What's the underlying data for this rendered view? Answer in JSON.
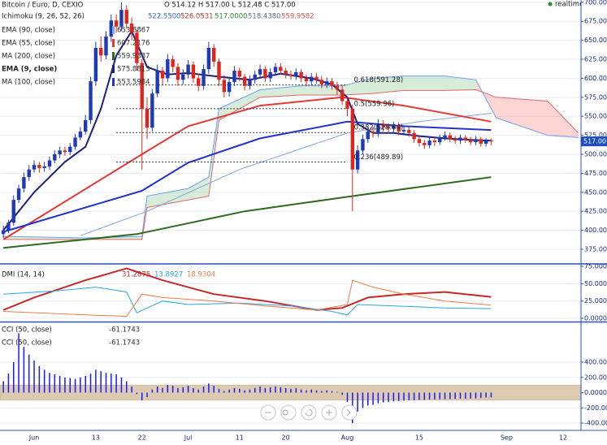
{
  "chart_data": [
    {
      "type": "candlestick",
      "title": "Bitcoin / Euro, D, CEXIO",
      "ohlc_label": "O 514.12 H 517.00 L 512.48 C 517.00",
      "realtime_label": "realtime",
      "last_price": {
        "value": 517,
        "label": "517.00"
      },
      "xlim": [
        -6.65,
        106.5
      ],
      "xticks": [
        {
          "value": 0,
          "label": "Jun"
        },
        {
          "value": 12,
          "label": "13"
        },
        {
          "value": 21,
          "label": "22"
        },
        {
          "value": 30,
          "label": "Jul"
        },
        {
          "value": 40,
          "label": "11"
        },
        {
          "value": 49,
          "label": "20"
        },
        {
          "value": 61,
          "label": "Aug"
        },
        {
          "value": 75,
          "label": "15"
        },
        {
          "value": 92,
          "label": "Sep"
        },
        {
          "value": 103,
          "label": "12"
        }
      ],
      "ylim": [
        359,
        703
      ],
      "yticks": [
        {
          "value": 375,
          "label": "375.00"
        },
        {
          "value": 400,
          "label": "400.00"
        },
        {
          "value": 425,
          "label": "425.00"
        },
        {
          "value": 450,
          "label": "450.00"
        },
        {
          "value": 475,
          "label": "475.00"
        },
        {
          "value": 500,
          "label": "500.00"
        },
        {
          "value": 525,
          "label": "525.00"
        },
        {
          "value": 550,
          "label": "550.00"
        },
        {
          "value": 575,
          "label": "575.00"
        },
        {
          "value": 600,
          "label": "600.00"
        },
        {
          "value": 625,
          "label": "625.00"
        },
        {
          "value": 650,
          "label": "650.00"
        },
        {
          "value": 675,
          "label": "675.00"
        },
        {
          "value": 700,
          "label": "700.00"
        }
      ],
      "grid": true,
      "up_color": "#1e3ab8",
      "down_color": "#e0261c",
      "x": [
        -6,
        -5,
        -4,
        -3,
        -2,
        -1,
        0,
        1,
        2,
        3,
        4,
        5,
        6,
        7,
        8,
        9,
        10,
        11,
        12,
        13,
        14,
        15,
        16,
        17,
        18,
        19,
        20,
        21,
        22,
        23,
        24,
        25,
        26,
        27,
        28,
        29,
        30,
        31,
        32,
        33,
        34,
        35,
        36,
        37,
        38,
        39,
        40,
        41,
        42,
        43,
        44,
        45,
        46,
        47,
        48,
        49,
        50,
        51,
        52,
        53,
        54,
        55,
        56,
        57,
        58,
        59,
        60,
        61,
        62,
        63,
        64,
        65,
        66,
        67,
        68,
        69,
        70,
        71,
        72,
        73,
        74,
        75,
        76,
        77,
        78,
        79,
        80,
        81,
        82,
        83,
        84,
        85,
        86,
        87,
        88,
        89
      ],
      "open": [
        395,
        400,
        410,
        440,
        455,
        470,
        480,
        486,
        482,
        484,
        492,
        500,
        505,
        503,
        510,
        522,
        530,
        545,
        596,
        640,
        630,
        655,
        676,
        668,
        690,
        672,
        660,
        620,
        560,
        535,
        580,
        610,
        600,
        625,
        615,
        598,
        605,
        618,
        600,
        590,
        612,
        640,
        622,
        598,
        582,
        595,
        610,
        602,
        590,
        598,
        605,
        612,
        600,
        608,
        615,
        610,
        605,
        603,
        608,
        600,
        596,
        602,
        598,
        592,
        596,
        590,
        585,
        570,
        560,
        480,
        505,
        520,
        530,
        528,
        540,
        536,
        534,
        538,
        530,
        532,
        528,
        520,
        515,
        512,
        518,
        516,
        522,
        525,
        520,
        518,
        522,
        519,
        516,
        520,
        514,
        518
      ],
      "high": [
        406,
        414,
        446,
        460,
        476,
        486,
        492,
        490,
        490,
        497,
        505,
        510,
        510,
        515,
        527,
        536,
        552,
        602,
        648,
        655,
        662,
        684,
        684,
        700,
        696,
        680,
        664,
        625,
        575,
        586,
        618,
        615,
        632,
        630,
        620,
        612,
        624,
        622,
        606,
        618,
        648,
        645,
        626,
        604,
        600,
        616,
        614,
        606,
        604,
        610,
        618,
        616,
        613,
        620,
        620,
        614,
        610,
        613,
        612,
        605,
        607,
        607,
        603,
        601,
        600,
        595,
        590,
        575,
        565,
        512,
        526,
        536,
        536,
        546,
        545,
        541,
        543,
        542,
        537,
        536,
        532,
        524,
        519,
        522,
        522,
        526,
        530,
        529,
        524,
        526,
        525,
        523,
        524,
        523,
        521,
        521
      ],
      "low": [
        390,
        396,
        406,
        436,
        450,
        465,
        476,
        476,
        477,
        480,
        488,
        495,
        498,
        499,
        506,
        518,
        526,
        540,
        590,
        622,
        625,
        648,
        660,
        662,
        665,
        650,
        610,
        480,
        520,
        530,
        575,
        592,
        595,
        608,
        590,
        592,
        600,
        594,
        583,
        585,
        606,
        615,
        590,
        575,
        576,
        590,
        596,
        584,
        585,
        593,
        600,
        595,
        595,
        603,
        605,
        600,
        598,
        598,
        595,
        590,
        591,
        593,
        587,
        587,
        585,
        578,
        565,
        550,
        425,
        475,
        500,
        515,
        522,
        523,
        530,
        528,
        529,
        525,
        525,
        523,
        515,
        510,
        507,
        508,
        511,
        512,
        518,
        516,
        514,
        514,
        515,
        512,
        512,
        510,
        510,
        512
      ],
      "close": [
        400,
        410,
        440,
        455,
        470,
        480,
        486,
        482,
        484,
        492,
        500,
        505,
        503,
        510,
        522,
        530,
        545,
        596,
        640,
        630,
        655,
        676,
        668,
        690,
        672,
        660,
        620,
        560,
        535,
        580,
        610,
        600,
        625,
        615,
        598,
        605,
        618,
        600,
        590,
        612,
        640,
        622,
        598,
        582,
        595,
        610,
        602,
        590,
        598,
        605,
        612,
        600,
        608,
        615,
        610,
        605,
        603,
        608,
        600,
        596,
        602,
        598,
        592,
        596,
        590,
        585,
        570,
        560,
        480,
        505,
        520,
        530,
        528,
        540,
        536,
        534,
        538,
        530,
        532,
        528,
        520,
        515,
        512,
        518,
        516,
        522,
        525,
        520,
        518,
        522,
        519,
        516,
        520,
        514,
        518,
        517
      ],
      "ichimoku": {
        "name": "Ichimoku (9, 26, 52, 26)",
        "readouts": [
          {
            "label": "522.5500",
            "color": "#3d6fd1"
          },
          {
            "label": "526.0531",
            "color": "#c0392b"
          },
          {
            "label": "517.0000",
            "color": "#2e8b2e"
          },
          {
            "label": "518.4380",
            "color": "#5a6a8a"
          },
          {
            "label": "559.9582",
            "color": "#d9534f"
          }
        ],
        "up_color": "rgba(76,175,80,0.22)",
        "down_color": "rgba(244,67,54,0.22)",
        "span_a": {
          "color": "#6d9eeb",
          "x": [
            -6,
            10,
            21,
            22,
            30,
            34,
            36,
            44,
            52,
            60,
            66,
            72,
            80,
            86,
            90,
            100,
            106
          ],
          "values": [
            392,
            390,
            392,
            445,
            455,
            470,
            560,
            585,
            590,
            590,
            600,
            603,
            603,
            598,
            548,
            525,
            522
          ]
        },
        "span_b": {
          "color": "#e06666",
          "x": [
            -6,
            10,
            21,
            22,
            30,
            34,
            36,
            44,
            52,
            60,
            66,
            72,
            80,
            86,
            90,
            100,
            106
          ],
          "values": [
            388,
            388,
            388,
            430,
            440,
            445,
            545,
            575,
            578,
            578,
            580,
            584,
            584,
            585,
            575,
            570,
            528
          ]
        }
      },
      "fib_x": [
        16,
        61
      ],
      "fib_levels": [
        {
          "value": 591.28,
          "label": "0.618(591.28)"
        },
        {
          "value": 559.96,
          "label": "0.5(559.96)"
        },
        {
          "value": 528.64,
          "label": "0.382(528.64)"
        },
        {
          "value": 489.89,
          "label": "0.236(489.89)"
        }
      ],
      "series": [
        {
          "name": "EMA (90, close)",
          "readout": "653.8867",
          "color": "#7fa7e0",
          "width": 1,
          "x": [
            9,
            22,
            40,
            61,
            75,
            89
          ],
          "values": [
            393,
            425,
            480,
            528,
            543,
            554
          ]
        },
        {
          "name": "EMA (55, close)",
          "readout": "607.2176",
          "color": "#e53935",
          "width": 2,
          "x": [
            -6,
            21,
            30,
            44,
            60,
            72,
            89
          ],
          "values": [
            388,
            500,
            537,
            564,
            575,
            564,
            543
          ]
        },
        {
          "name": "MA (200, close)",
          "readout": "559.9337",
          "color": "#2e6b1f",
          "width": 2,
          "x": [
            -6,
            20,
            41,
            62,
            89
          ],
          "values": [
            377,
            395,
            425,
            445,
            470
          ]
        },
        {
          "name": "EMA (9, close)",
          "readout": "575.8813",
          "color": "#1a237e",
          "width": 2,
          "x": [
            -6,
            0,
            6,
            10,
            13,
            16,
            19,
            22,
            26,
            30,
            36,
            42,
            48,
            54,
            58,
            61,
            63,
            66,
            70,
            75,
            80,
            85,
            89
          ],
          "values": [
            400,
            450,
            490,
            510,
            560,
            630,
            662,
            615,
            605,
            607,
            602,
            598,
            606,
            600,
            592,
            575,
            540,
            528,
            528,
            524,
            521,
            519,
            518
          ]
        },
        {
          "name": "MA (100, close)",
          "readout": "553.5984",
          "color": "#2233cc",
          "width": 2,
          "x": [
            -6,
            21,
            30,
            44,
            61,
            72,
            89
          ],
          "values": [
            398,
            452,
            489,
            521,
            543,
            537,
            532
          ]
        }
      ]
    },
    {
      "type": "line",
      "name": "DMI (14, 14)",
      "readouts": [
        {
          "label": "31.2875",
          "color": "#c62828"
        },
        {
          "label": "13.8927",
          "color": "#29a6e6"
        },
        {
          "label": "18.9304",
          "color": "#f07a4a"
        }
      ],
      "ylim": [
        -3.5,
        77.4
      ],
      "yticks": [
        {
          "value": 0,
          "label": "0.0000"
        },
        {
          "value": 25,
          "label": "25.0000"
        },
        {
          "value": 50,
          "label": "50.0000"
        },
        {
          "value": 75,
          "label": "75.0000"
        }
      ],
      "series": [
        {
          "color": "#c62828",
          "width": 2,
          "x": [
            -6,
            0,
            10,
            18,
            25,
            35,
            45,
            55,
            60,
            65,
            72,
            80,
            89
          ],
          "values": [
            12,
            30,
            55,
            72,
            55,
            35,
            25,
            12,
            15,
            30,
            35,
            38,
            31
          ]
        },
        {
          "color": "#29a6e6",
          "width": 1,
          "x": [
            -6,
            5,
            12,
            18,
            20,
            25,
            30,
            40,
            50,
            58,
            61,
            63,
            70,
            80,
            89
          ],
          "values": [
            35,
            40,
            45,
            38,
            8,
            25,
            20,
            22,
            18,
            10,
            5,
            20,
            18,
            15,
            14
          ]
        },
        {
          "color": "#f07a4a",
          "width": 1,
          "x": [
            -6,
            10,
            18,
            21,
            25,
            35,
            45,
            55,
            61,
            62,
            66,
            72,
            80,
            89
          ],
          "values": [
            10,
            5,
            3,
            35,
            30,
            25,
            18,
            12,
            20,
            55,
            45,
            35,
            25,
            19
          ]
        }
      ]
    },
    {
      "type": "histogram",
      "names": [
        "CCI (50, close)",
        "CCI (50, close)"
      ],
      "readouts": [
        "-61.1743",
        "-61.1743"
      ],
      "color": "#1a1aff",
      "band": [
        -100,
        100
      ],
      "band_color": "#dccbb0",
      "ylim": [
        -496,
        912
      ],
      "yticks": [
        {
          "value": -400,
          "label": "-400.000"
        },
        {
          "value": -200,
          "label": "-200.000"
        },
        {
          "value": 0,
          "label": "0.0000"
        },
        {
          "value": 200,
          "label": "200.000"
        },
        {
          "value": 400,
          "label": "400.000"
        }
      ],
      "x": [
        -6,
        -5,
        -4,
        -3,
        -2,
        -1,
        0,
        1,
        2,
        3,
        4,
        5,
        6,
        7,
        8,
        9,
        10,
        11,
        12,
        13,
        14,
        15,
        16,
        17,
        18,
        19,
        20,
        21,
        22,
        23,
        24,
        25,
        26,
        27,
        28,
        29,
        30,
        31,
        32,
        33,
        34,
        35,
        36,
        37,
        38,
        39,
        40,
        41,
        42,
        43,
        44,
        45,
        46,
        47,
        48,
        49,
        50,
        51,
        52,
        53,
        54,
        55,
        56,
        57,
        58,
        59,
        60,
        61,
        62,
        63,
        64,
        65,
        66,
        67,
        68,
        69,
        70,
        71,
        72,
        73,
        74,
        75,
        76,
        77,
        78,
        79,
        80,
        81,
        82,
        83,
        84,
        85,
        86,
        87,
        88,
        89
      ],
      "values": [
        150,
        250,
        400,
        780,
        600,
        500,
        420,
        350,
        300,
        260,
        240,
        220,
        200,
        190,
        180,
        200,
        220,
        250,
        300,
        280,
        260,
        250,
        240,
        200,
        150,
        80,
        -20,
        -100,
        -60,
        40,
        80,
        60,
        100,
        90,
        60,
        70,
        90,
        60,
        40,
        80,
        120,
        90,
        50,
        20,
        40,
        60,
        50,
        30,
        40,
        60,
        80,
        60,
        70,
        80,
        70,
        60,
        50,
        60,
        40,
        30,
        40,
        30,
        20,
        30,
        20,
        10,
        -30,
        -120,
        -400,
        -250,
        -200,
        -170,
        -160,
        -140,
        -130,
        -120,
        -115,
        -110,
        -105,
        -100,
        -100,
        -95,
        -95,
        -90,
        -90,
        -88,
        -85,
        -85,
        -82,
        -80,
        -80,
        -78,
        -76,
        -70,
        -65,
        -61
      ]
    }
  ]
}
